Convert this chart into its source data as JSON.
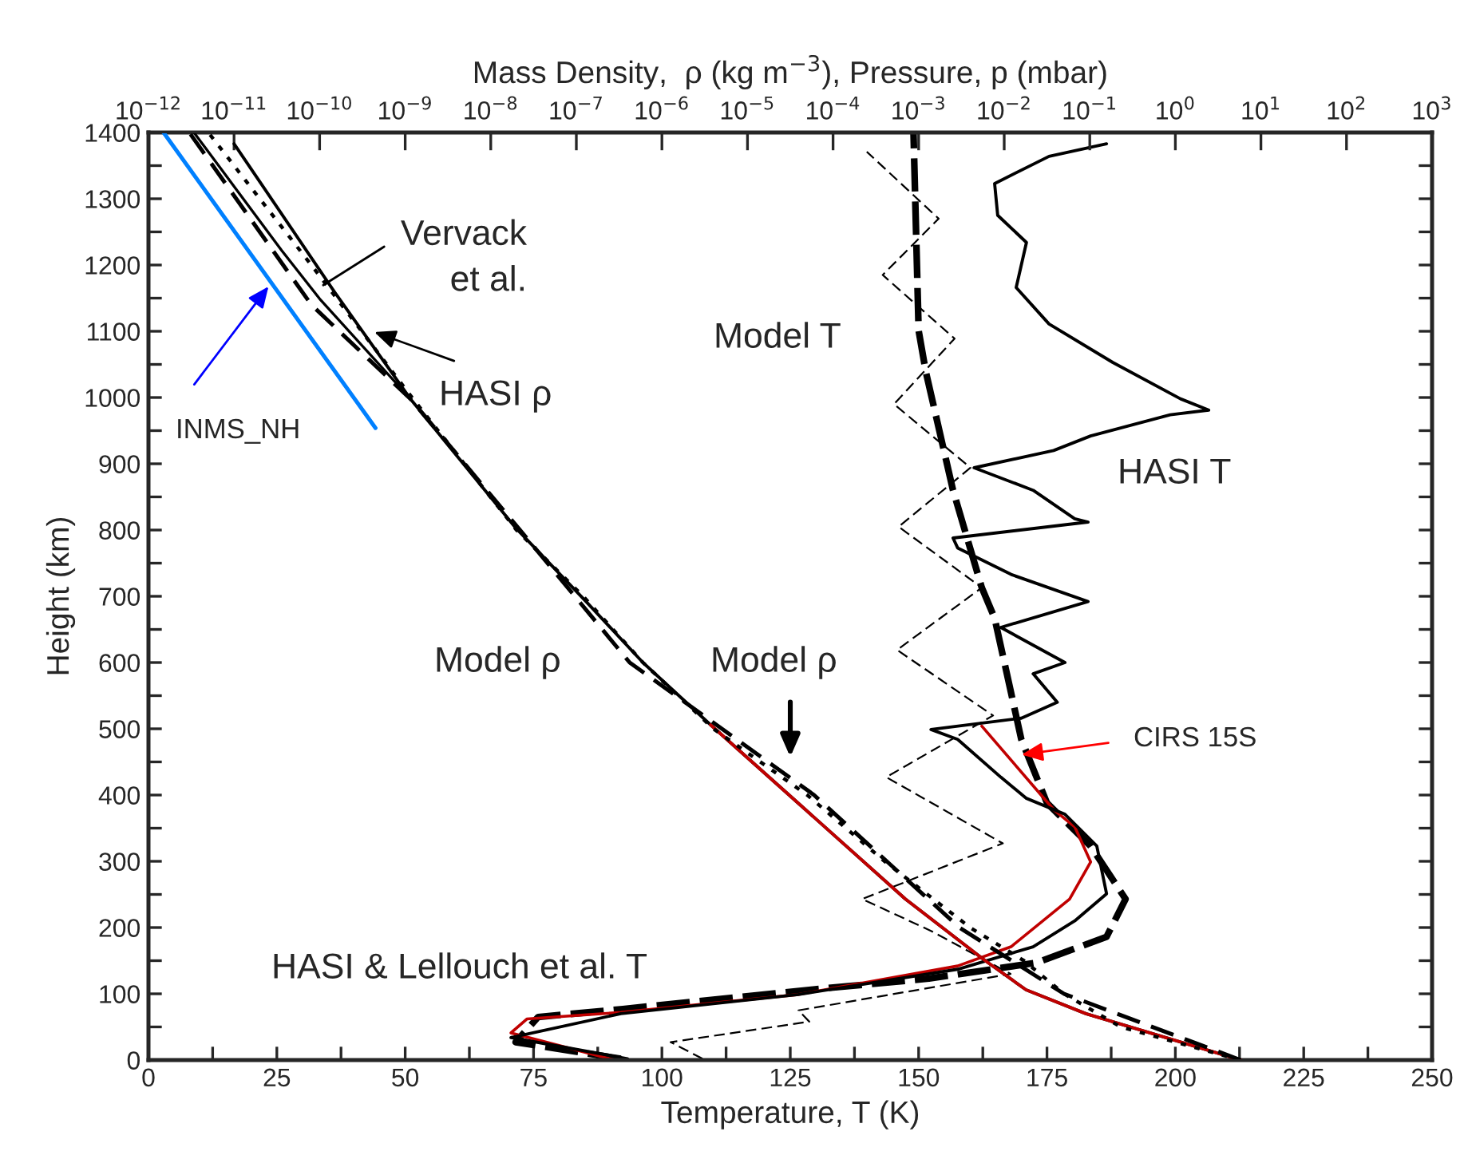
{
  "chart_data": {
    "type": "line",
    "xlabel": "Temperature, T (K)",
    "ylabel": "Height (km)",
    "x2label": "Mass Density,  ρ (kg m$^{−3}$), Pressure, p (mbar)",
    "xlim": [
      0,
      250
    ],
    "ylim": [
      0,
      1400
    ],
    "x2lim": [
      1e-12,
      1000
    ],
    "log": "x2",
    "grid": false,
    "legend": false,
    "xticks": [
      0,
      {
        "value": 12.5,
        "label": null
      },
      25,
      {
        "value": 37.5,
        "label": null
      },
      50,
      {
        "value": 62.5,
        "label": null
      },
      75,
      {
        "value": 87.5,
        "label": null
      },
      100,
      {
        "value": 112.5,
        "label": null
      },
      125,
      {
        "value": 137.5,
        "label": null
      },
      150,
      {
        "value": 162.5,
        "label": null
      },
      175,
      {
        "value": 187.5,
        "label": null
      },
      200,
      {
        "value": 212.5,
        "label": null
      },
      225,
      {
        "value": 237.5,
        "label": null
      },
      250
    ],
    "yticks": [
      0,
      {
        "value": 50,
        "label": null
      },
      100,
      {
        "value": 150,
        "label": null
      },
      200,
      {
        "value": 250,
        "label": null
      },
      300,
      {
        "value": 350,
        "label": null
      },
      400,
      {
        "value": 450,
        "label": null
      },
      500,
      {
        "value": 550,
        "label": null
      },
      600,
      {
        "value": 650,
        "label": null
      },
      700,
      {
        "value": 750,
        "label": null
      },
      800,
      {
        "value": 850,
        "label": null
      },
      900,
      {
        "value": 950,
        "label": null
      },
      1000,
      {
        "value": 1050,
        "label": null
      },
      1100,
      {
        "value": 1150,
        "label": null
      },
      1200,
      {
        "value": 1250,
        "label": null
      },
      1300,
      {
        "value": 1350,
        "label": null
      },
      1400
    ],
    "x2ticks": [
      {
        "value": 1e-12,
        "label": "10$^{−12}$"
      },
      {
        "value": 1e-11,
        "label": "10$^{−11}$"
      },
      {
        "value": 1e-10,
        "label": "10$^{−10}$"
      },
      {
        "value": 1e-09,
        "label": "10$^{−9}$"
      },
      {
        "value": 1e-08,
        "label": "10$^{−8}$"
      },
      {
        "value": 1e-07,
        "label": "10$^{−7}$"
      },
      {
        "value": 1e-06,
        "label": "10$^{−6}$"
      },
      {
        "value": 1e-05,
        "label": "10$^{−5}$"
      },
      {
        "value": 0.0001,
        "label": "10$^{−4}$"
      },
      {
        "value": 0.001,
        "label": "10$^{−3}$"
      },
      {
        "value": 0.01,
        "label": "10$^{−2}$"
      },
      {
        "value": 0.1,
        "label": "10$^{−1}$"
      },
      {
        "value": 1,
        "label": "10$^{0}$"
      },
      {
        "value": 10,
        "label": "10$^{1}$"
      },
      {
        "value": 100,
        "label": "10$^{2}$"
      },
      {
        "value": 1000,
        "label": "10$^{3}$"
      }
    ],
    "series": [
      {
        "axis": "x2",
        "color": "#000000",
        "line_style": "solid",
        "x": [
          5.8,
          0.09,
          0.018,
          0.006,
          0.0007,
          3.9e-05,
          3.7e-06,
          6e-07,
          1.3e-07,
          1.9e-08,
          1.15e-09,
          1.5e-10,
          1e-11
        ],
        "values": [
          0,
          70,
          106,
          150,
          243,
          388,
          506,
          600,
          692,
          805,
          998,
          1159,
          1383
        ]
      },
      {
        "axis": "x2",
        "color": "#c00000",
        "line_style": "solid",
        "x": [
          5.8,
          0.09,
          0.018,
          0.006,
          0.0007,
          3.9e-05,
          3.7e-06
        ],
        "values": [
          0,
          70,
          106,
          150,
          243,
          388,
          506
        ]
      },
      {
        "axis": "x2",
        "color": "#000000",
        "line_style": "dotted",
        "x": [
          5.8,
          0.23,
          0.05,
          0.017,
          0.004,
          0.0004,
          5e-05,
          4e-06,
          6e-07,
          1.2e-07,
          2e-08,
          1.2e-09,
          8e-11,
          5e-12
        ],
        "values": [
          0,
          50,
          100,
          150,
          200,
          300,
          400,
          500,
          600,
          700,
          800,
          1000,
          1200,
          1400
        ]
      },
      {
        "axis": "x2",
        "color": "#000000",
        "line_style": "dashed",
        "x": [
          5.8,
          0.05,
          0.003,
          6e-05,
          4.2e-07,
          2.2e-08,
          1.15e-09,
          8e-11,
          3e-12
        ],
        "values": [
          0,
          100,
          200,
          400,
          600,
          800,
          998,
          1140,
          1400
        ]
      },
      {
        "axis": "x2",
        "color": "#000000",
        "line_style": "solid",
        "x": [
          1.15e-09,
          1e-10,
          3.6e-11,
          3.4e-12
        ],
        "values": [
          998,
          1149,
          1222,
          1400
        ]
      },
      {
        "axis": "x2",
        "color": "#0080ff",
        "line_style": "solid",
        "x": [
          1.5e-12,
          4.5e-10
        ],
        "values": [
          1400,
          954
        ]
      },
      {
        "color": "#000000",
        "line_style": "dashed",
        "x": [
          107.9,
          101.7,
          128.7,
          126.6,
          167.9,
          152.4,
          139.0,
          166.4,
          143.7,
          164.5,
          145.8,
          162.3,
          146.1,
          160.1,
          145.2,
          157.0,
          143.0,
          153.9,
          139.9
        ],
        "values": [
          2,
          27,
          58,
          75,
          130,
          195,
          243,
          327,
          427,
          520,
          619,
          713,
          805,
          894,
          990,
          1089,
          1185,
          1270,
          1371
        ]
      },
      {
        "color": "#000000",
        "line_style": "dashed",
        "x": [
          92,
          71.5,
          75.9,
          92.4,
          128.7,
          152,
          173,
          186.6,
          190.3,
          183.5,
          175,
          170,
          164.8,
          162.3,
          156.7,
          151.4,
          150,
          149
        ],
        "values": [
          2,
          27,
          65,
          77,
          106,
          123,
          147,
          186,
          243,
          323,
          388,
          484,
          667,
          713,
          860,
          1039,
          1101,
          1400
        ]
      },
      {
        "color": "#c00000",
        "line_style": "solid",
        "x": [
          90.8,
          70.6,
          73.7,
          92,
          126.6,
          157.6,
          168,
          179.4,
          183.5,
          180.4,
          176.3,
          162.3
        ],
        "values": [
          0,
          41,
          62,
          72,
          99,
          142,
          171,
          243,
          299,
          352,
          378,
          504
        ]
      },
      {
        "color": "#000000",
        "line_style": "solid",
        "x": [
          93.3,
          70.6,
          92,
          126.6,
          157.6,
          172.3,
          180.4,
          186.6,
          184.7,
          178.5,
          171,
          166,
          157.6,
          152.4,
          170,
          177,
          172.3,
          178.5,
          166,
          183,
          168,
          157.6,
          156.7,
          183,
          180.4,
          172.3,
          160.8,
          176.3,
          183.5,
          199,
          206.5,
          201,
          187.8,
          175.4,
          169,
          171,
          165.4,
          164.8,
          175.4,
          186.6
        ],
        "values": [
          2,
          34,
          70,
          99,
          137,
          171,
          210,
          251,
          323,
          371,
          395,
          427,
          484,
          499,
          516,
          540,
          583,
          600,
          653,
          692,
          733,
          773,
          788,
          812,
          817,
          860,
          894,
          920,
          942,
          974,
          981,
          998,
          1053,
          1111,
          1166,
          1234,
          1275,
          1323,
          1364,
          1383
        ]
      }
    ],
    "annotations": [
      {
        "text": "Vervack\net al.",
        "x": 33.3,
        "y": 1166
      },
      {
        "text": "HASI ρ",
        "x": 43.2,
        "y": 1101
      },
      {
        "text": "INMS_NH",
        "x": 23.9,
        "y": 1173
      },
      "Model ρ",
      "Model ρ",
      "Model T",
      "HASI T",
      {
        "text": "CIRS 15S",
        "x": 169.2,
        "y": 460
      },
      "HASI & Lellouch et al. T"
    ]
  }
}
